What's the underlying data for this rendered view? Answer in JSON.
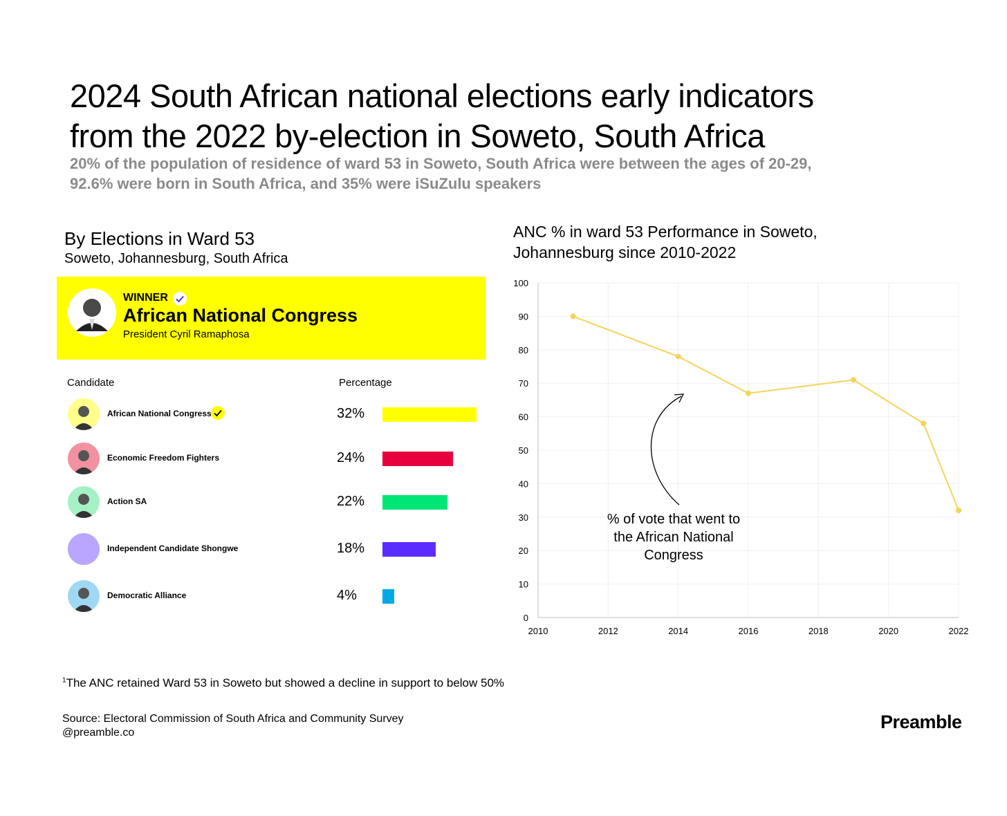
{
  "header": {
    "title_line1": "2024 South African national elections early indicators",
    "title_line2": "from the 2022 by-election in Soweto, South Africa",
    "subtitle_line1": "20% of the population of residence of ward 53 in Soweto, South Africa were between the ages of 20-29,",
    "subtitle_line2": "92.6% were born in South Africa, and 35% were iSuZulu speakers"
  },
  "left_panel": {
    "title": "By Elections in Ward 53",
    "subtitle": "Soweto, Johannesburg, South Africa",
    "winner": {
      "label": "WINNER",
      "party": "African National Congress",
      "person": "President Cyril Ramaphosa",
      "box_color": "#ffff00"
    },
    "col_candidate": "Candidate",
    "col_percentage": "Percentage",
    "candidates": [
      {
        "name": "African National Congress",
        "pct_label": "32%",
        "pct": 32,
        "bar_color": "#ffff00",
        "avatar_color": "#ffff8a",
        "winner": true
      },
      {
        "name": "Economic Freedom Fighters",
        "pct_label": "24%",
        "pct": 24,
        "bar_color": "#e8003d",
        "avatar_color": "#f2919f",
        "winner": false
      },
      {
        "name": "Action SA",
        "pct_label": "22%",
        "pct": 22,
        "bar_color": "#00e676",
        "avatar_color": "#a6f0c6",
        "winner": false
      },
      {
        "name": "Independent Candidate Shongwe",
        "pct_label": "18%",
        "pct": 18,
        "bar_color": "#5b2cff",
        "avatar_color": "#b9a6ff",
        "winner": false
      },
      {
        "name": "Democratic Alliance",
        "pct_label": "4%",
        "pct": 4,
        "bar_color": "#00a9e6",
        "avatar_color": "#9fd8f2",
        "winner": false
      }
    ]
  },
  "chart_data": {
    "type": "line",
    "title_line1": "ANC % in ward 53 Performance in Soweto,",
    "title_line2": "Johannesburg since 2010-2022",
    "x": [
      2011,
      2014,
      2016,
      2019,
      2021,
      2022
    ],
    "series": [
      {
        "values": [
          90,
          78,
          67,
          71,
          58,
          32
        ],
        "color": "#f5d35a"
      }
    ],
    "xlim": [
      2010,
      2022
    ],
    "ylim": [
      0,
      100
    ],
    "x_ticks": [
      "2010",
      "2012",
      "2014",
      "2016",
      "2018",
      "2020",
      "2022"
    ],
    "y_ticks": [
      "0",
      "10",
      "20",
      "30",
      "40",
      "50",
      "60",
      "70",
      "80",
      "90",
      "100"
    ],
    "grid": true,
    "annotation_lines": [
      "% of vote that went to",
      "the African National",
      "Congress"
    ]
  },
  "footer": {
    "footnote_mark": "1",
    "footnote": "The ANC retained Ward 53 in Soweto but showed a decline in support to below 50%",
    "source_line1": "Source: Electoral Commission of South Africa and Community Survey",
    "source_line2": "@preamble.co",
    "brand": "Preamble"
  }
}
